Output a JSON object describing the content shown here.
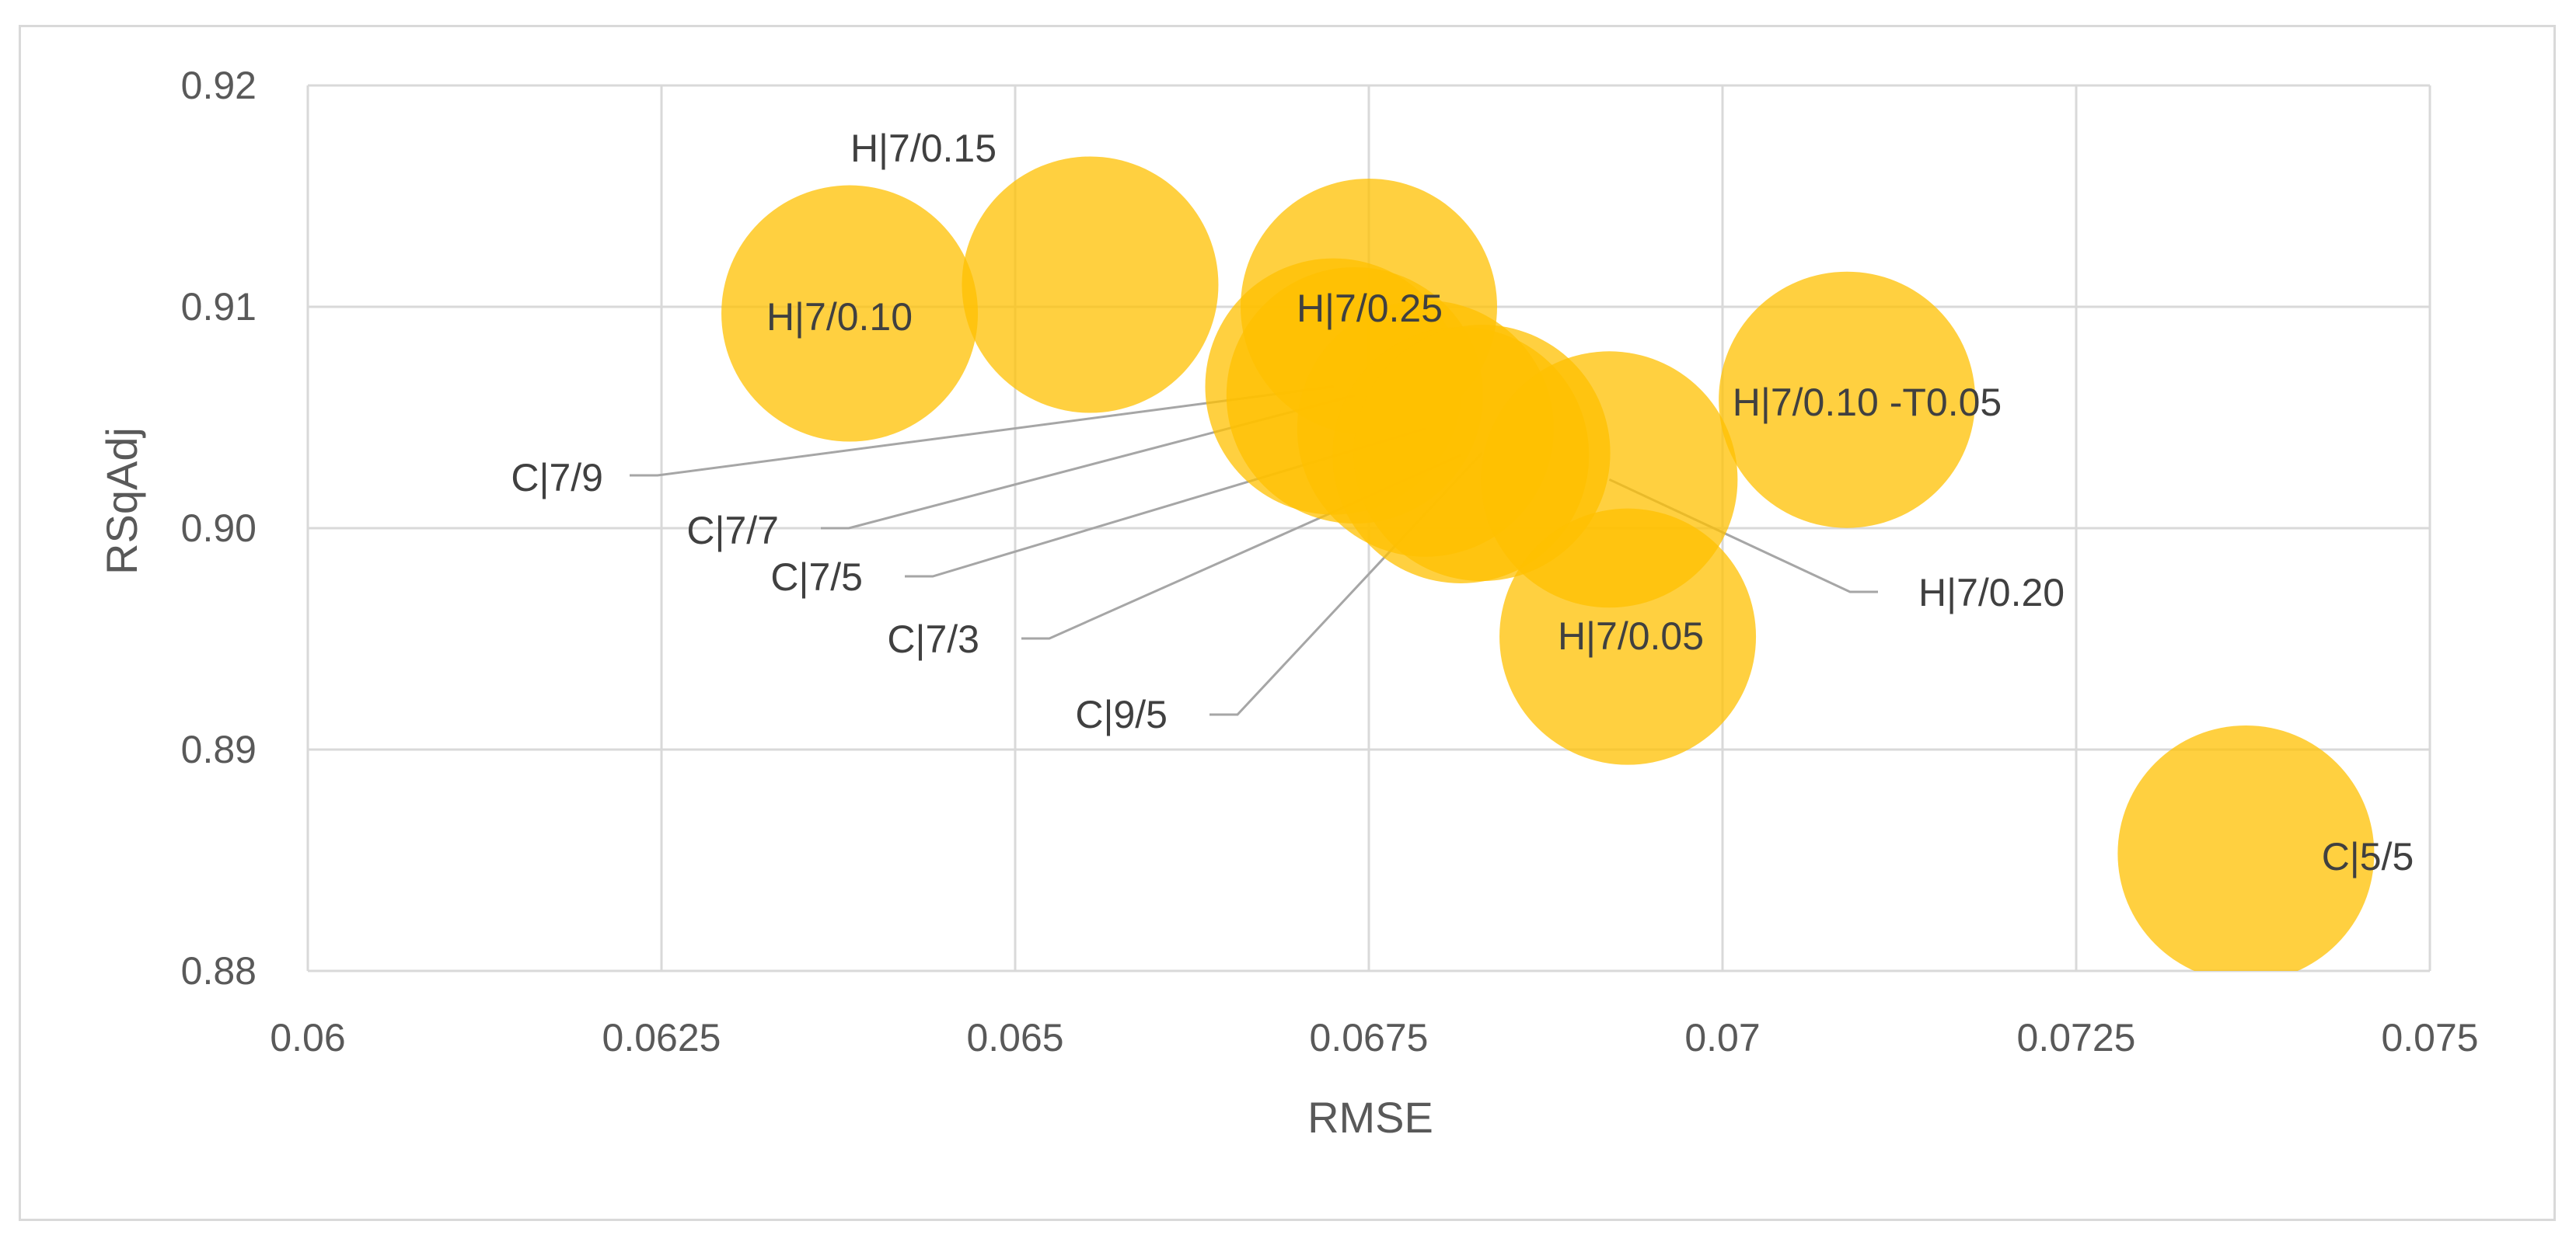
{
  "chart_data": {
    "type": "bubble",
    "title": "",
    "xlabel": "RMSE",
    "ylabel": "RSqAdj",
    "xlim": [
      0.06,
      0.075
    ],
    "ylim": [
      0.88,
      0.92
    ],
    "xticks": [
      "0.06",
      "0.0625",
      "0.065",
      "0.0675",
      "0.07",
      "0.0725",
      "0.075"
    ],
    "yticks": [
      "0.88",
      "0.89",
      "0.90",
      "0.91",
      "0.92"
    ],
    "grid": true,
    "bubble_color": "#ffc000",
    "leader_color": "#a6a6a6",
    "points": [
      {
        "label": "H|7/0.10",
        "x": 0.06383,
        "y": 0.9097,
        "leader": false
      },
      {
        "label": "H|7/0.15",
        "x": 0.06553,
        "y": 0.911,
        "leader": false
      },
      {
        "label": "H|7/0.25",
        "x": 0.0675,
        "y": 0.91,
        "leader": false
      },
      {
        "label": "C|7/9",
        "x": 0.06725,
        "y": 0.9064,
        "leader": true
      },
      {
        "label": "C|7/7",
        "x": 0.0674,
        "y": 0.906,
        "leader": true
      },
      {
        "label": "C|7/5",
        "x": 0.0679,
        "y": 0.9045,
        "leader": true
      },
      {
        "label": "C|7/3",
        "x": 0.06815,
        "y": 0.9033,
        "leader": true
      },
      {
        "label": "C|9/5",
        "x": 0.0683,
        "y": 0.9034,
        "leader": true
      },
      {
        "label": "H|7/0.20",
        "x": 0.0692,
        "y": 0.9022,
        "leader": true
      },
      {
        "label": "H|7/0.05",
        "x": 0.06933,
        "y": 0.8951,
        "leader": false
      },
      {
        "label": "H|7/0.10 -T0.05",
        "x": 0.07088,
        "y": 0.9058,
        "leader": false
      },
      {
        "label": "C|5/5",
        "x": 0.0737,
        "y": 0.8853,
        "leader": false
      }
    ]
  }
}
